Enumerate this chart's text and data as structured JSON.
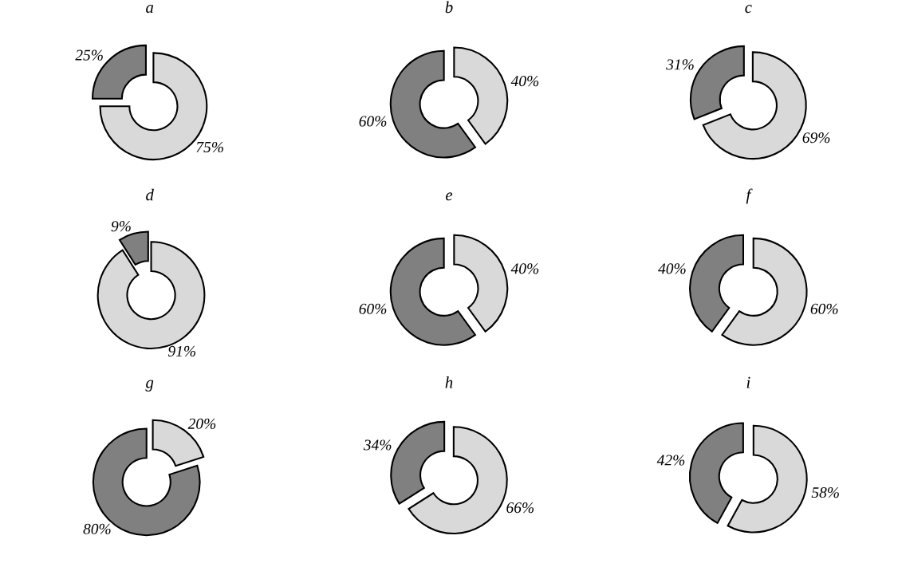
{
  "chart_data": [
    {
      "type": "donut",
      "title": "a",
      "categories": [
        null,
        null
      ],
      "values": [
        75,
        25
      ],
      "colors": [
        "#d9d9d9",
        "#808080"
      ],
      "value_labels": [
        "75%",
        "25%"
      ]
    },
    {
      "type": "donut",
      "title": "b",
      "categories": [
        null,
        null
      ],
      "values": [
        40,
        60
      ],
      "colors": [
        "#d9d9d9",
        "#808080"
      ],
      "value_labels": [
        "40%",
        "60%"
      ]
    },
    {
      "type": "donut",
      "title": "c",
      "categories": [
        null,
        null
      ],
      "values": [
        69,
        31
      ],
      "colors": [
        "#d9d9d9",
        "#808080"
      ],
      "value_labels": [
        "69%",
        "31%"
      ]
    },
    {
      "type": "donut",
      "title": "d",
      "categories": [
        null,
        null
      ],
      "values": [
        91,
        9
      ],
      "colors": [
        "#d9d9d9",
        "#808080"
      ],
      "value_labels": [
        "91%",
        "9%"
      ]
    },
    {
      "type": "donut",
      "title": "e",
      "categories": [
        null,
        null
      ],
      "values": [
        40,
        60
      ],
      "colors": [
        "#d9d9d9",
        "#808080"
      ],
      "value_labels": [
        "40%",
        "60%"
      ]
    },
    {
      "type": "donut",
      "title": "f",
      "categories": [
        null,
        null
      ],
      "values": [
        60,
        40
      ],
      "colors": [
        "#d9d9d9",
        "#808080"
      ],
      "value_labels": [
        "60%",
        "40%"
      ]
    },
    {
      "type": "donut",
      "title": "g",
      "categories": [
        null,
        null
      ],
      "values": [
        20,
        80
      ],
      "colors": [
        "#d9d9d9",
        "#808080"
      ],
      "value_labels": [
        "20%",
        "80%"
      ]
    },
    {
      "type": "donut",
      "title": "h",
      "categories": [
        null,
        null
      ],
      "values": [
        66,
        34
      ],
      "colors": [
        "#d9d9d9",
        "#808080"
      ],
      "value_labels": [
        "66%",
        "34%"
      ]
    },
    {
      "type": "donut",
      "title": "i",
      "categories": [
        null,
        null
      ],
      "values": [
        58,
        42
      ],
      "colors": [
        "#d9d9d9",
        "#808080"
      ],
      "value_labels": [
        "58%",
        "42%"
      ]
    }
  ]
}
